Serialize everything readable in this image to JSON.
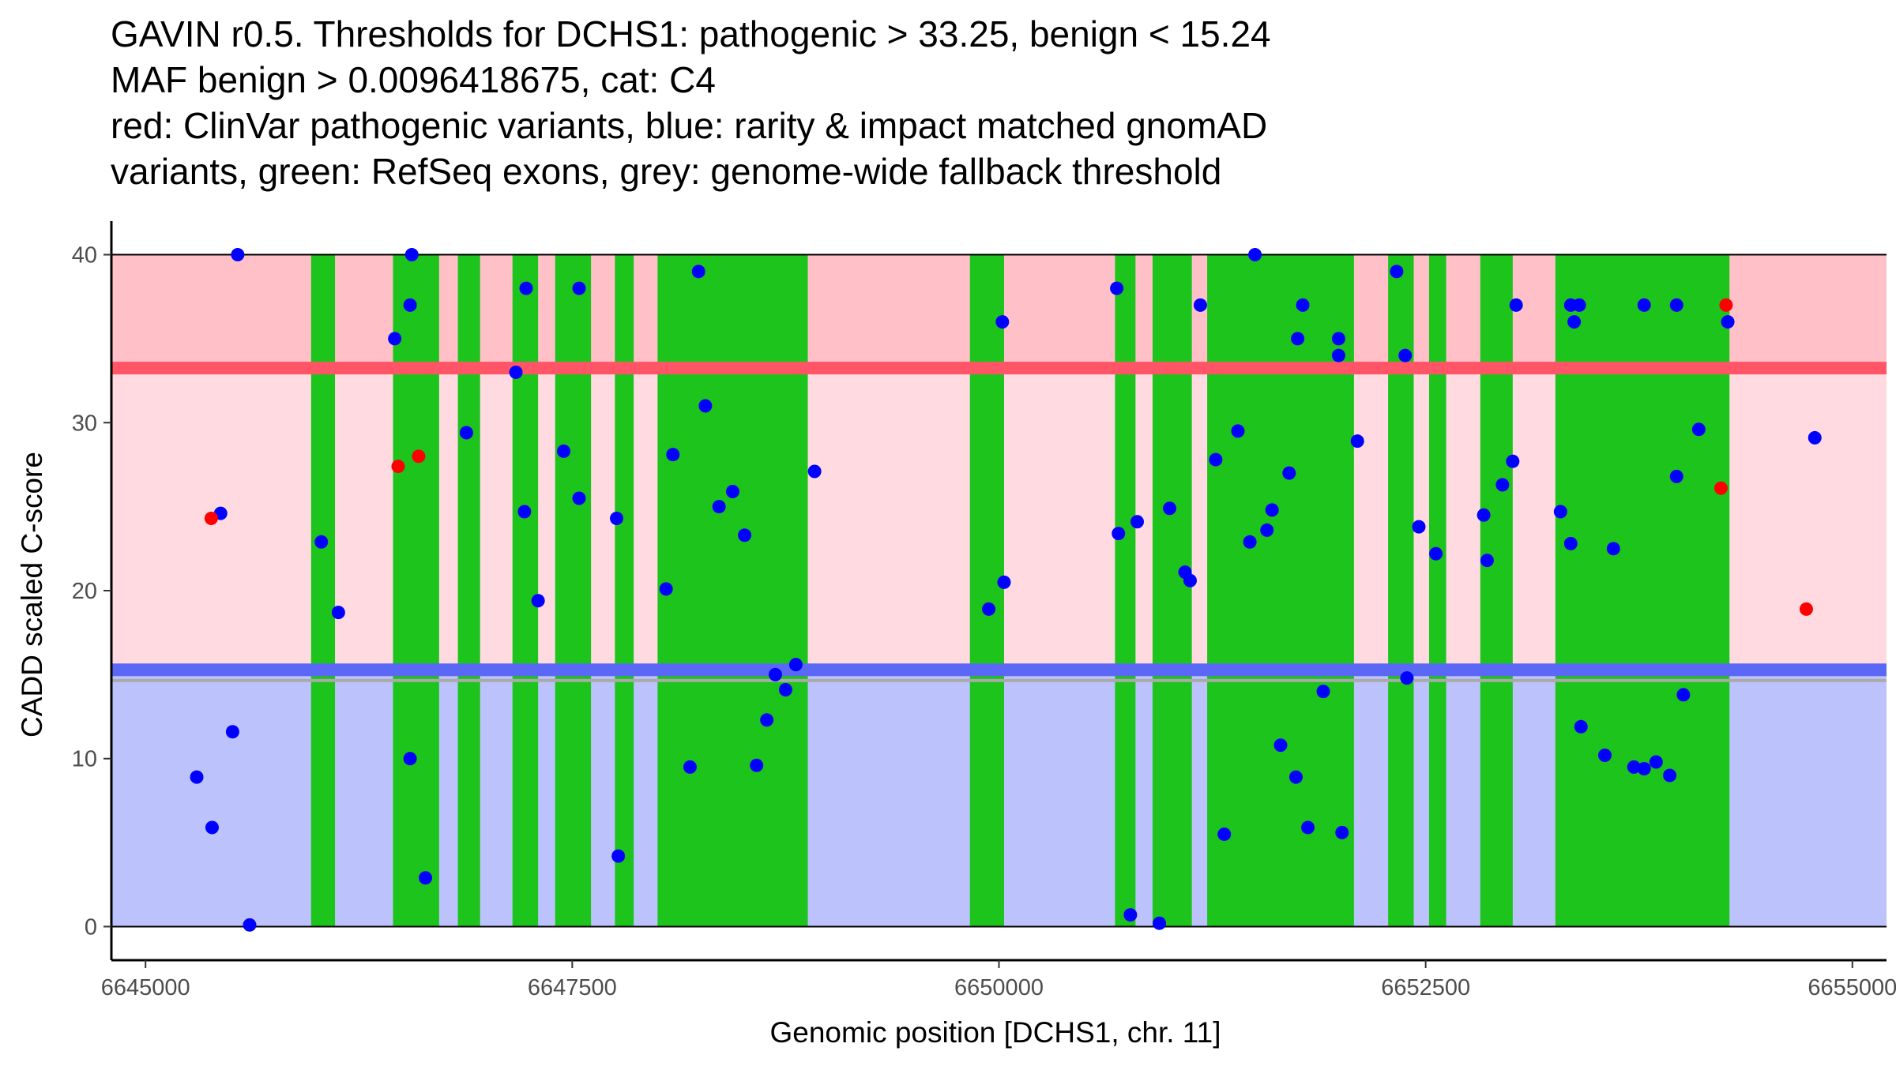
{
  "titles": {
    "line1": "GAVIN r0.5. Thresholds for DCHS1: pathogenic > 33.25, benign < 15.24",
    "line2": "MAF benign > 0.0096418675, cat: C4",
    "line3": "red: ClinVar pathogenic variants, blue: rarity & impact matched gnomAD",
    "line4": "variants, green: RefSeq exons, grey: genome-wide fallback threshold"
  },
  "chart_data": {
    "type": "scatter",
    "title": "GAVIN r0.5. Thresholds for DCHS1: pathogenic > 33.25, benign < 15.24 | MAF benign > 0.0096418675, cat: C4",
    "xlabel": "Genomic position [DCHS1, chr. 11]",
    "ylabel": "CADD scaled C-score",
    "xlim": [
      6644800,
      6655200
    ],
    "ylim": [
      -2,
      42
    ],
    "x_ticks": [
      6645000,
      6647500,
      6650000,
      6652500,
      6655000
    ],
    "y_ticks": [
      0,
      10,
      20,
      30,
      40
    ],
    "pathogenic_threshold": 33.25,
    "benign_threshold": 15.24,
    "fallback_threshold": 14.65,
    "colors": {
      "pathogenic_region": "#ffc0c8",
      "pathogenic_band": "#f8d5db",
      "intermediate_region": "#ffdae0",
      "pathogenic_line": "#ff5566",
      "benign_region": "#bcc2fb",
      "benign_line": "#5a68f5",
      "fallback_line": "#aaaaaa",
      "exon": "#1cc41c",
      "clinvar": "#ff0000",
      "gnomad": "#0000ff",
      "axis": "#000000"
    },
    "exons": [
      [
        6645970,
        6646110
      ],
      [
        6646450,
        6646720
      ],
      [
        6646830,
        6646960
      ],
      [
        6647150,
        6647300
      ],
      [
        6647400,
        6647610
      ],
      [
        6647750,
        6647860
      ],
      [
        6648000,
        6648880
      ],
      [
        6649830,
        6650030
      ],
      [
        6650680,
        6650800
      ],
      [
        6650900,
        6651130
      ],
      [
        6651220,
        6652080
      ],
      [
        6652280,
        6652430
      ],
      [
        6652520,
        6652620
      ],
      [
        6652820,
        6653010
      ],
      [
        6653260,
        6654280
      ]
    ],
    "series": [
      {
        "name": "ClinVar pathogenic variants",
        "color": "#ff0000",
        "points": [
          [
            6645385,
            24.3
          ],
          [
            6646480,
            27.4
          ],
          [
            6646600,
            28.0
          ],
          [
            6654230,
            26.1
          ],
          [
            6654260,
            37.0
          ],
          [
            6654730,
            18.9
          ]
        ]
      },
      {
        "name": "rarity & impact matched gnomAD variants",
        "color": "#0000ff",
        "points": [
          [
            6645300,
            8.9
          ],
          [
            6645390,
            5.9
          ],
          [
            6645440,
            24.6
          ],
          [
            6645510,
            11.6
          ],
          [
            6645540,
            40.0
          ],
          [
            6645610,
            0.1
          ],
          [
            6646030,
            22.9
          ],
          [
            6646130,
            18.7
          ],
          [
            6646460,
            35.0
          ],
          [
            6646560,
            40.0
          ],
          [
            6646550,
            37.0
          ],
          [
            6646550,
            10.0
          ],
          [
            6646640,
            2.9
          ],
          [
            6646880,
            29.4
          ],
          [
            6647170,
            33.0
          ],
          [
            6647230,
            38.0
          ],
          [
            6647220,
            24.7
          ],
          [
            6647300,
            19.4
          ],
          [
            6647450,
            28.3
          ],
          [
            6647540,
            38.0
          ],
          [
            6647540,
            25.5
          ],
          [
            6647760,
            24.3
          ],
          [
            6647770,
            4.2
          ],
          [
            6648050,
            20.1
          ],
          [
            6648090,
            28.1
          ],
          [
            6648190,
            9.5
          ],
          [
            6648240,
            39.0
          ],
          [
            6648280,
            31.0
          ],
          [
            6648360,
            25.0
          ],
          [
            6648440,
            25.9
          ],
          [
            6648510,
            23.3
          ],
          [
            6648580,
            9.6
          ],
          [
            6648640,
            12.3
          ],
          [
            6648690,
            15.0
          ],
          [
            6648750,
            14.1
          ],
          [
            6648810,
            15.6
          ],
          [
            6648920,
            27.1
          ],
          [
            6649940,
            18.9
          ],
          [
            6650020,
            36.0
          ],
          [
            6650030,
            20.5
          ],
          [
            6650690,
            38.0
          ],
          [
            6650700,
            23.4
          ],
          [
            6650770,
            0.7
          ],
          [
            6650810,
            24.1
          ],
          [
            6650940,
            0.2
          ],
          [
            6651000,
            24.9
          ],
          [
            6651090,
            21.1
          ],
          [
            6651120,
            20.6
          ],
          [
            6651180,
            37.0
          ],
          [
            6651270,
            27.8
          ],
          [
            6651320,
            5.5
          ],
          [
            6651400,
            29.5
          ],
          [
            6651470,
            22.9
          ],
          [
            6651500,
            40.0
          ],
          [
            6651570,
            23.6
          ],
          [
            6651600,
            24.8
          ],
          [
            6651650,
            10.8
          ],
          [
            6651700,
            27.0
          ],
          [
            6651740,
            8.9
          ],
          [
            6651750,
            35.0
          ],
          [
            6651780,
            37.0
          ],
          [
            6651810,
            5.9
          ],
          [
            6651900,
            14.0
          ],
          [
            6651990,
            35.0
          ],
          [
            6651990,
            34.0
          ],
          [
            6652010,
            5.6
          ],
          [
            6652100,
            28.9
          ],
          [
            6652330,
            39.0
          ],
          [
            6652380,
            34.0
          ],
          [
            6652390,
            14.8
          ],
          [
            6652460,
            23.8
          ],
          [
            6652560,
            22.2
          ],
          [
            6652840,
            24.5
          ],
          [
            6652860,
            21.8
          ],
          [
            6652950,
            26.3
          ],
          [
            6653010,
            27.7
          ],
          [
            6653030,
            37.0
          ],
          [
            6653290,
            24.7
          ],
          [
            6653350,
            22.8
          ],
          [
            6653350,
            37.0
          ],
          [
            6653370,
            36.0
          ],
          [
            6653400,
            37.0
          ],
          [
            6653410,
            11.9
          ],
          [
            6653550,
            10.2
          ],
          [
            6653600,
            22.5
          ],
          [
            6653720,
            9.5
          ],
          [
            6653780,
            37.0
          ],
          [
            6653780,
            9.4
          ],
          [
            6653850,
            9.8
          ],
          [
            6653930,
            9.0
          ],
          [
            6653970,
            37.0
          ],
          [
            6653970,
            26.8
          ],
          [
            6654010,
            13.8
          ],
          [
            6654100,
            29.6
          ],
          [
            6654270,
            36.0
          ],
          [
            6654780,
            29.1
          ]
        ]
      }
    ]
  }
}
